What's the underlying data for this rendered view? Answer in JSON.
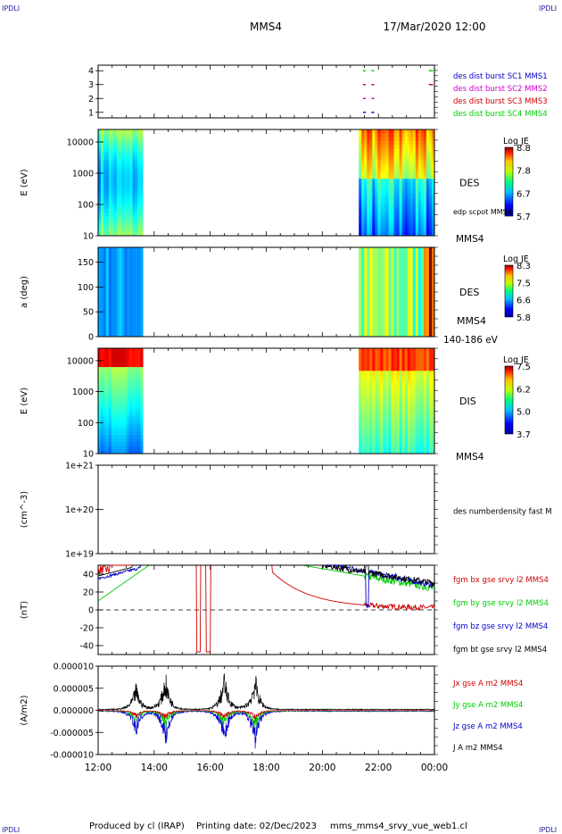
{
  "corner_marks": {
    "top_left": "IPDLI",
    "top_right": "IPDLI",
    "bottom_left": "IPDLI",
    "bottom_right": "IPDLI"
  },
  "header": {
    "spacecraft": "MMS4",
    "datetime": "17/Mar/2020 12:00"
  },
  "footer": {
    "producer": "Produced by cl (IRAP)",
    "printing_date": "Printing date: 02/Dec/2023",
    "filename": "mms_mms4_srvy_vue_web1.cl"
  },
  "time_axis": {
    "ticks": [
      "12:00",
      "14:00",
      "16:00",
      "18:00",
      "20:00",
      "22:00",
      "00:00"
    ]
  },
  "chart_data": [
    {
      "id": "availability",
      "type": "scatter",
      "ylim": [
        0.6,
        4.4
      ],
      "yticks": [
        "1",
        "2",
        "3",
        "4"
      ],
      "legend": [
        {
          "name": "des dist burst SC1 MMS1",
          "color": "#0000cc"
        },
        {
          "name": "des dist burst SC2 MMS2",
          "color": "#cc00cc"
        },
        {
          "name": "des dist burst SC3 MMS3",
          "color": "#cc0000"
        },
        {
          "name": "des dist burst SC4 MMS4",
          "color": "#00cc00"
        }
      ],
      "segments": [
        {
          "sc": 1,
          "ranges": [
            [
              21.45,
              21.55
            ],
            [
              21.75,
              21.85
            ]
          ]
        },
        {
          "sc": 2,
          "ranges": [
            [
              21.45,
              21.55
            ],
            [
              21.75,
              21.85
            ]
          ]
        },
        {
          "sc": 3,
          "ranges": [
            [
              21.45,
              21.55
            ],
            [
              21.75,
              21.85
            ],
            [
              23.8,
              23.95
            ]
          ]
        },
        {
          "sc": 4,
          "ranges": [
            [
              21.45,
              21.55
            ],
            [
              21.75,
              21.85
            ],
            [
              23.8,
              23.95
            ]
          ]
        }
      ]
    },
    {
      "id": "des_energy",
      "type": "heatmap",
      "ylabel": "E (eV)",
      "yscale": "log",
      "yticks": [
        "10",
        "100",
        "1000",
        "10000"
      ],
      "label_right": "DES",
      "label_right2": "edp scpot MMS4",
      "label_bottom": "MMS4",
      "colorbar": {
        "title": "Log JE",
        "ticks": [
          "8.8",
          "7.8",
          "6.7",
          "5.7"
        ]
      },
      "data_intervals": [
        [
          12.0,
          13.6
        ],
        [
          21.3,
          24.0
        ]
      ]
    },
    {
      "id": "des_pitch",
      "type": "heatmap",
      "ylabel": "a (deg)",
      "yticks": [
        "0",
        "50",
        "100",
        "150"
      ],
      "ylim": [
        0,
        180
      ],
      "label_right": "DES",
      "label_right2": "MMS4",
      "label_bottom": "140-186 eV",
      "colorbar": {
        "title": "Log JE",
        "ticks": [
          "8.3",
          "7.5",
          "6.6",
          "5.8"
        ]
      },
      "data_intervals": [
        [
          12.0,
          13.6
        ],
        [
          21.3,
          24.0
        ]
      ]
    },
    {
      "id": "dis_energy",
      "type": "heatmap",
      "ylabel": "E (eV)",
      "yscale": "log",
      "yticks": [
        "10",
        "100",
        "1000",
        "10000"
      ],
      "label_right": "DIS",
      "label_bottom": "MMS4",
      "colorbar": {
        "title": "Log JE",
        "ticks": [
          "7.5",
          "6.2",
          "5.0",
          "3.7"
        ]
      },
      "data_intervals": [
        [
          12.0,
          13.6
        ],
        [
          21.3,
          24.0
        ]
      ]
    },
    {
      "id": "density",
      "type": "line",
      "ylabel": "(cm^-3)",
      "yscale": "log",
      "yticks": [
        "1e+19",
        "1e+20",
        "1e+21"
      ],
      "label_right": "des numberdensity fast M",
      "series": []
    },
    {
      "id": "magnetic_field",
      "type": "line",
      "ylabel": "(nT)",
      "ylim": [
        -50,
        50
      ],
      "yticks": [
        "-40",
        "-20",
        "0",
        "20",
        "40"
      ],
      "series": [
        {
          "name": "fgm bx gse srvy l2 MMS4",
          "color": "#cc0000"
        },
        {
          "name": "fgm by gse srvy l2 MMS4",
          "color": "#00cc00"
        },
        {
          "name": "fgm bz gse srvy l2 MMS4",
          "color": "#0000cc"
        },
        {
          "name": "fgm bt gse srvy l2 MMS4",
          "color": "#000000"
        }
      ]
    },
    {
      "id": "current_density",
      "type": "line",
      "ylabel": "(A/m2)",
      "ylim": [
        -0.0001,
        0.0001
      ],
      "yticks": [
        "-0.000010",
        "-0.000005",
        "0.000000",
        "0.000005",
        "0.000010"
      ],
      "series": [
        {
          "name": "Jx gse A m2 MMS4",
          "color": "#cc0000"
        },
        {
          "name": "Jy gse A m2 MMS4",
          "color": "#00cc00"
        },
        {
          "name": "Jz gse A m2 MMS4",
          "color": "#0000cc"
        },
        {
          "name": "J A m2 MMS4",
          "color": "#000000"
        }
      ]
    }
  ]
}
